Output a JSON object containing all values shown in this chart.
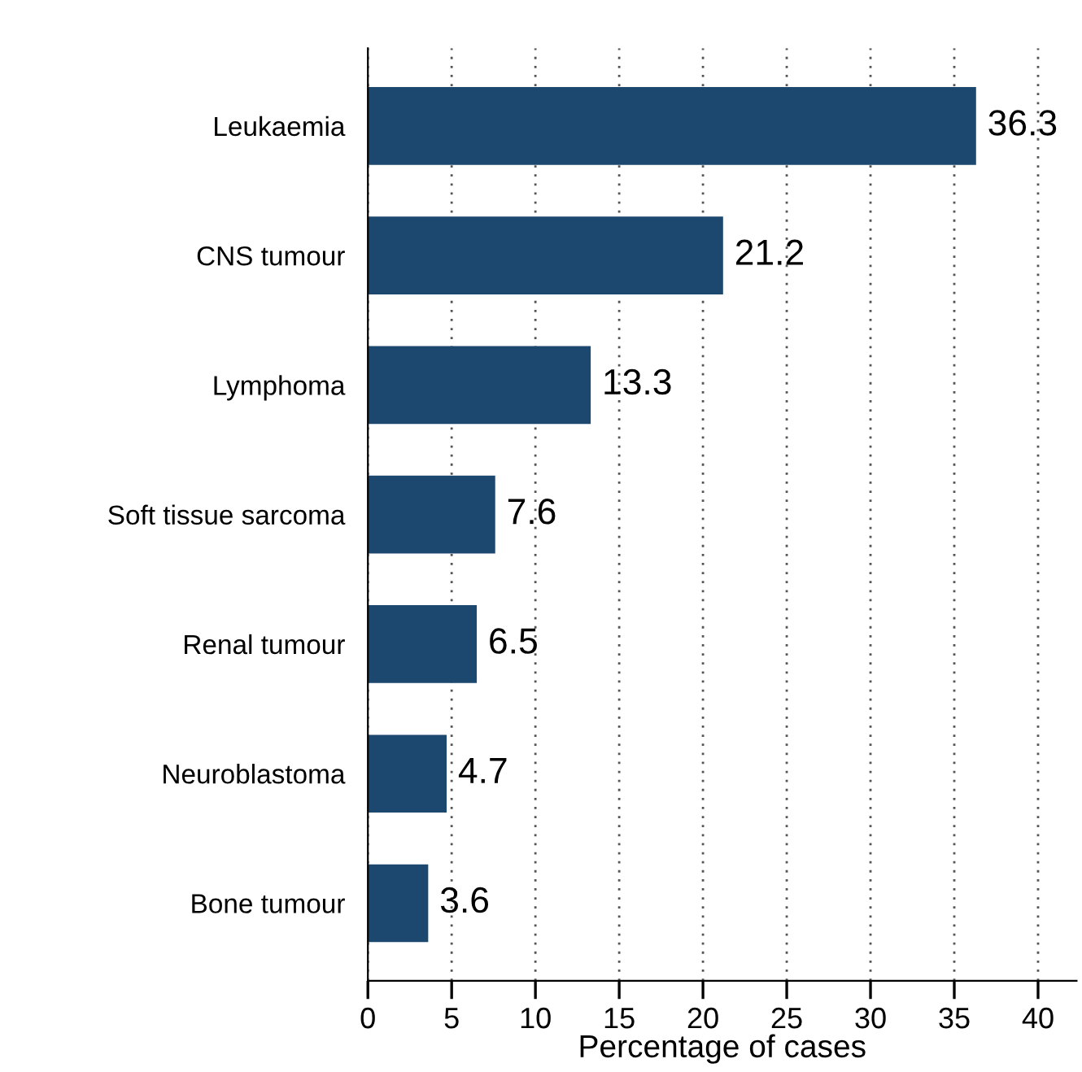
{
  "chart_data": {
    "type": "bar",
    "orientation": "horizontal",
    "xlabel": "Percentage of cases",
    "categories": [
      "Leukaemia",
      "CNS tumour",
      "Lymphoma",
      "Soft tissue sarcoma",
      "Renal tumour",
      "Neuroblastoma",
      "Bone tumour"
    ],
    "values": [
      36.3,
      21.2,
      13.3,
      7.6,
      6.5,
      4.7,
      3.6
    ],
    "color": "#1c476f",
    "xlim": [
      0,
      42.3
    ],
    "xticks": [
      0,
      5,
      10,
      15,
      20,
      25,
      30,
      35,
      40
    ],
    "grid": "x",
    "data_labels": true
  }
}
